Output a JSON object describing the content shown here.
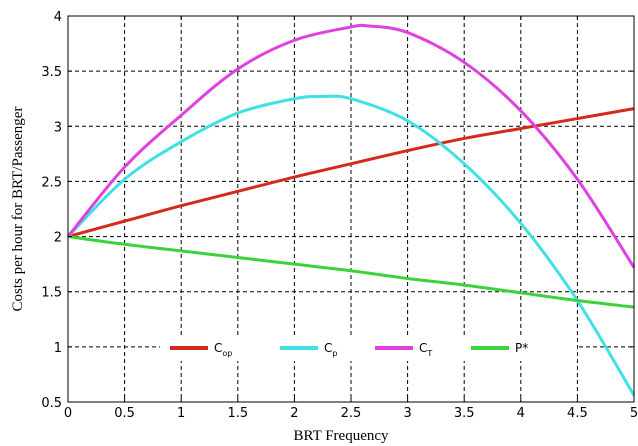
{
  "chart_data": {
    "type": "line",
    "xlabel": "BRT Frequency",
    "ylabel": "Costs per hour for BRT/Passenger",
    "xlim": [
      0,
      5
    ],
    "ylim": [
      0.5,
      4
    ],
    "xticks": [
      0,
      0.5,
      1,
      1.5,
      2,
      2.5,
      3,
      3.5,
      4,
      4.5,
      5
    ],
    "xtick_labels": [
      "0",
      "0.5",
      "1",
      "1.5",
      "2",
      "2.5",
      "3",
      "3.5",
      "4",
      "4.5",
      "5"
    ],
    "yticks": [
      0.5,
      1,
      1.5,
      2,
      2.5,
      3,
      3.5,
      4
    ],
    "ytick_labels": [
      "0.5",
      "1",
      "1.5",
      "2",
      "2.5",
      "3",
      "3.5",
      "4"
    ],
    "grid": true,
    "grid_style": "dashed",
    "legend_position": "bottom-center",
    "series": [
      {
        "name": "C",
        "name_sub": "op",
        "color": "#d42a1c",
        "x": [
          0,
          0.5,
          1,
          1.5,
          2,
          2.5,
          3,
          3.5,
          4,
          4.5,
          5
        ],
        "y": [
          2.0,
          2.14,
          2.28,
          2.41,
          2.54,
          2.66,
          2.78,
          2.89,
          2.98,
          3.07,
          3.16
        ]
      },
      {
        "name": "C",
        "name_sub": "p",
        "color": "#3fe0e6",
        "x": [
          0,
          0.5,
          1,
          1.5,
          2,
          2.25,
          2.5,
          3,
          3.5,
          4,
          4.5,
          5
        ],
        "y": [
          2.0,
          2.52,
          2.86,
          3.12,
          3.25,
          3.27,
          3.25,
          3.05,
          2.66,
          2.12,
          1.42,
          0.56
        ]
      },
      {
        "name": "C",
        "name_sub": "T",
        "color": "#e040e0",
        "x": [
          0,
          0.5,
          1,
          1.5,
          2,
          2.5,
          2.65,
          3,
          3.5,
          4,
          4.5,
          5
        ],
        "y": [
          2.0,
          2.63,
          3.1,
          3.52,
          3.78,
          3.9,
          3.91,
          3.85,
          3.58,
          3.14,
          2.52,
          1.72
        ]
      },
      {
        "name": "P*",
        "name_sub": "",
        "color": "#3cd23c",
        "x": [
          0,
          0.5,
          1,
          1.5,
          2,
          2.5,
          3,
          3.5,
          4,
          4.5,
          5
        ],
        "y": [
          2.0,
          1.93,
          1.87,
          1.81,
          1.75,
          1.69,
          1.62,
          1.56,
          1.49,
          1.42,
          1.36
        ]
      }
    ]
  }
}
